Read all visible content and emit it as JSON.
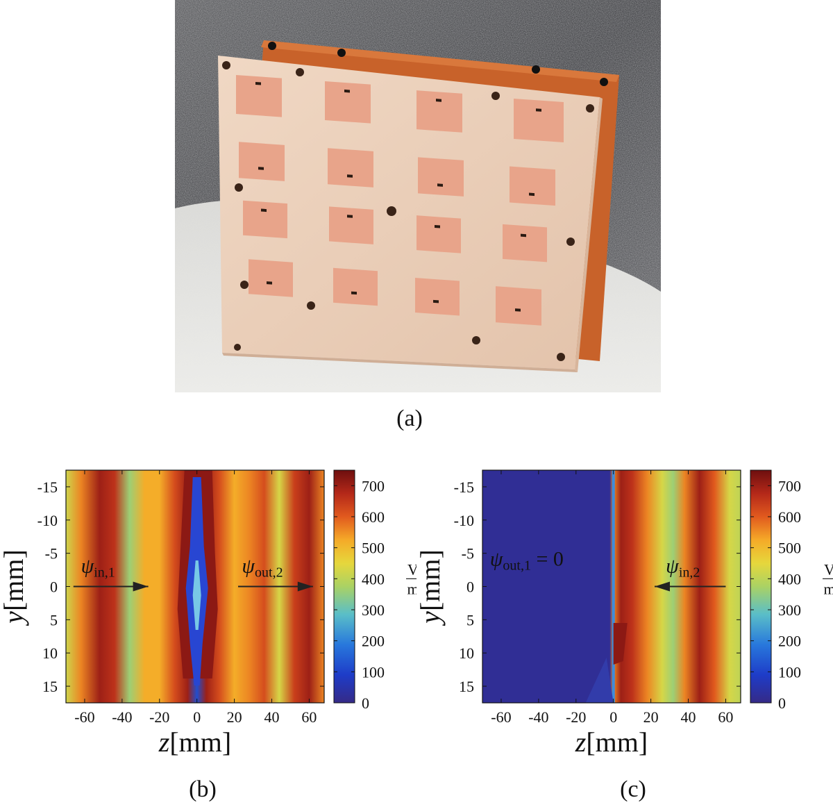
{
  "captions": {
    "a": "(a)",
    "b": "(b)",
    "c": "(c)"
  },
  "chart_data": [
    {
      "type": "heatmap",
      "panel": "(b)",
      "xlabel_var": "z",
      "xlabel_unit": "[mm]",
      "ylabel_var": "y",
      "ylabel_unit": "[mm]",
      "x_ticks": [
        "-60",
        "-40",
        "-20",
        "0",
        "20",
        "40",
        "60"
      ],
      "y_ticks": [
        "-15",
        "-10",
        "-5",
        "0",
        "5",
        "10",
        "15"
      ],
      "xlim": [
        -70,
        68
      ],
      "ylim": [
        -17.5,
        17.5
      ],
      "colorbar": {
        "ticks": [
          "0",
          "100",
          "200",
          "300",
          "400",
          "500",
          "600",
          "700"
        ],
        "range": [
          0,
          750
        ],
        "unit_num": "V",
        "unit_den": "m"
      },
      "annotations": [
        {
          "psi_sub": "in,1",
          "text": "",
          "direction": "right"
        },
        {
          "psi_sub": "out,2",
          "text": "",
          "direction": "right"
        }
      ],
      "field_profile_z": [
        -70,
        -62,
        -52,
        -44,
        -36,
        -28,
        -20,
        -12,
        -5,
        0,
        5,
        12,
        20,
        28,
        36,
        44,
        52,
        60,
        68
      ],
      "field_profile_value": [
        420,
        560,
        700,
        660,
        360,
        520,
        520,
        620,
        700,
        120,
        700,
        620,
        520,
        560,
        620,
        430,
        640,
        700,
        560
      ]
    },
    {
      "type": "heatmap",
      "panel": "(c)",
      "xlabel_var": "z",
      "xlabel_unit": "[mm]",
      "ylabel_var": "y",
      "ylabel_unit": "[mm]",
      "x_ticks": [
        "-60",
        "-40",
        "-20",
        "0",
        "20",
        "40",
        "60"
      ],
      "y_ticks": [
        "-15",
        "-10",
        "-5",
        "0",
        "5",
        "10",
        "15"
      ],
      "xlim": [
        -70,
        68
      ],
      "ylim": [
        -17.5,
        17.5
      ],
      "colorbar": {
        "ticks": [
          "0",
          "100",
          "200",
          "300",
          "400",
          "500",
          "600",
          "700"
        ],
        "range": [
          0,
          750
        ],
        "unit_num": "V",
        "unit_den": "m"
      },
      "annotations": [
        {
          "psi_sub": "out,1",
          "text": " = 0",
          "direction": "none"
        },
        {
          "psi_sub": "in,2",
          "text": "",
          "direction": "left"
        }
      ],
      "field_profile_z": [
        -70,
        -2,
        0,
        4,
        10,
        18,
        26,
        32,
        38,
        46,
        54,
        62,
        68
      ],
      "field_profile_value": [
        20,
        20,
        560,
        700,
        660,
        560,
        430,
        360,
        560,
        700,
        600,
        430,
        400
      ]
    }
  ],
  "photo": {
    "content": "antenna-array-board",
    "patch_rows": 4,
    "patch_cols": 4,
    "colors": {
      "substrate": "#ead0bb",
      "patch": "#e8a48a",
      "copper": "#c8622a",
      "foam": "#3c3d40",
      "base": "#e2e2df"
    }
  }
}
